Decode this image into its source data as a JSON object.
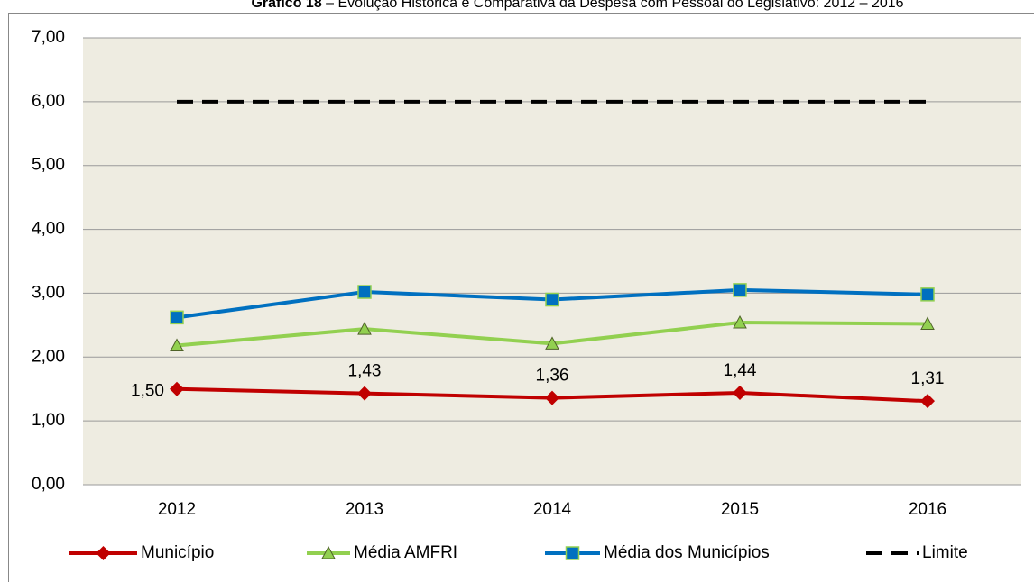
{
  "chart_data": {
    "type": "line",
    "title": {
      "number": "Gráfico 18",
      "text": " – Evolução Histórica e Comparativa da Despesa com Pessoal do Legislativo: 2012 – 2016"
    },
    "categories": [
      "2012",
      "2013",
      "2014",
      "2015",
      "2016"
    ],
    "series": [
      {
        "name": "Município",
        "color": "#c00000",
        "marker": "diamond",
        "values": [
          1.5,
          1.43,
          1.36,
          1.44,
          1.31
        ],
        "value_labels": [
          "1,50",
          "1,43",
          "1,36",
          "1,44",
          "1,31"
        ]
      },
      {
        "name": "Média AMFRI",
        "color": "#92d050",
        "marker": "triangle",
        "values": [
          2.18,
          2.44,
          2.21,
          2.54,
          2.52
        ]
      },
      {
        "name": "Média dos Municípios",
        "color": "#0070c0",
        "marker": "square",
        "values": [
          2.62,
          3.02,
          2.9,
          3.05,
          2.98
        ]
      },
      {
        "name": "Limite",
        "color": "#000000",
        "dashed": true,
        "values": [
          6,
          6,
          6,
          6,
          6
        ]
      }
    ],
    "ylim": [
      0,
      7
    ],
    "yticks": [
      {
        "value": 0,
        "label": "0,00"
      },
      {
        "value": 1,
        "label": "1,00"
      },
      {
        "value": 2,
        "label": "2,00"
      },
      {
        "value": 3,
        "label": "3,00"
      },
      {
        "value": 4,
        "label": "4,00"
      },
      {
        "value": 5,
        "label": "5,00"
      },
      {
        "value": 6,
        "label": "6,00"
      },
      {
        "value": 7,
        "label": "7,00"
      }
    ],
    "grid": true,
    "legend": "bottom",
    "plot_background": "#eeece1"
  }
}
